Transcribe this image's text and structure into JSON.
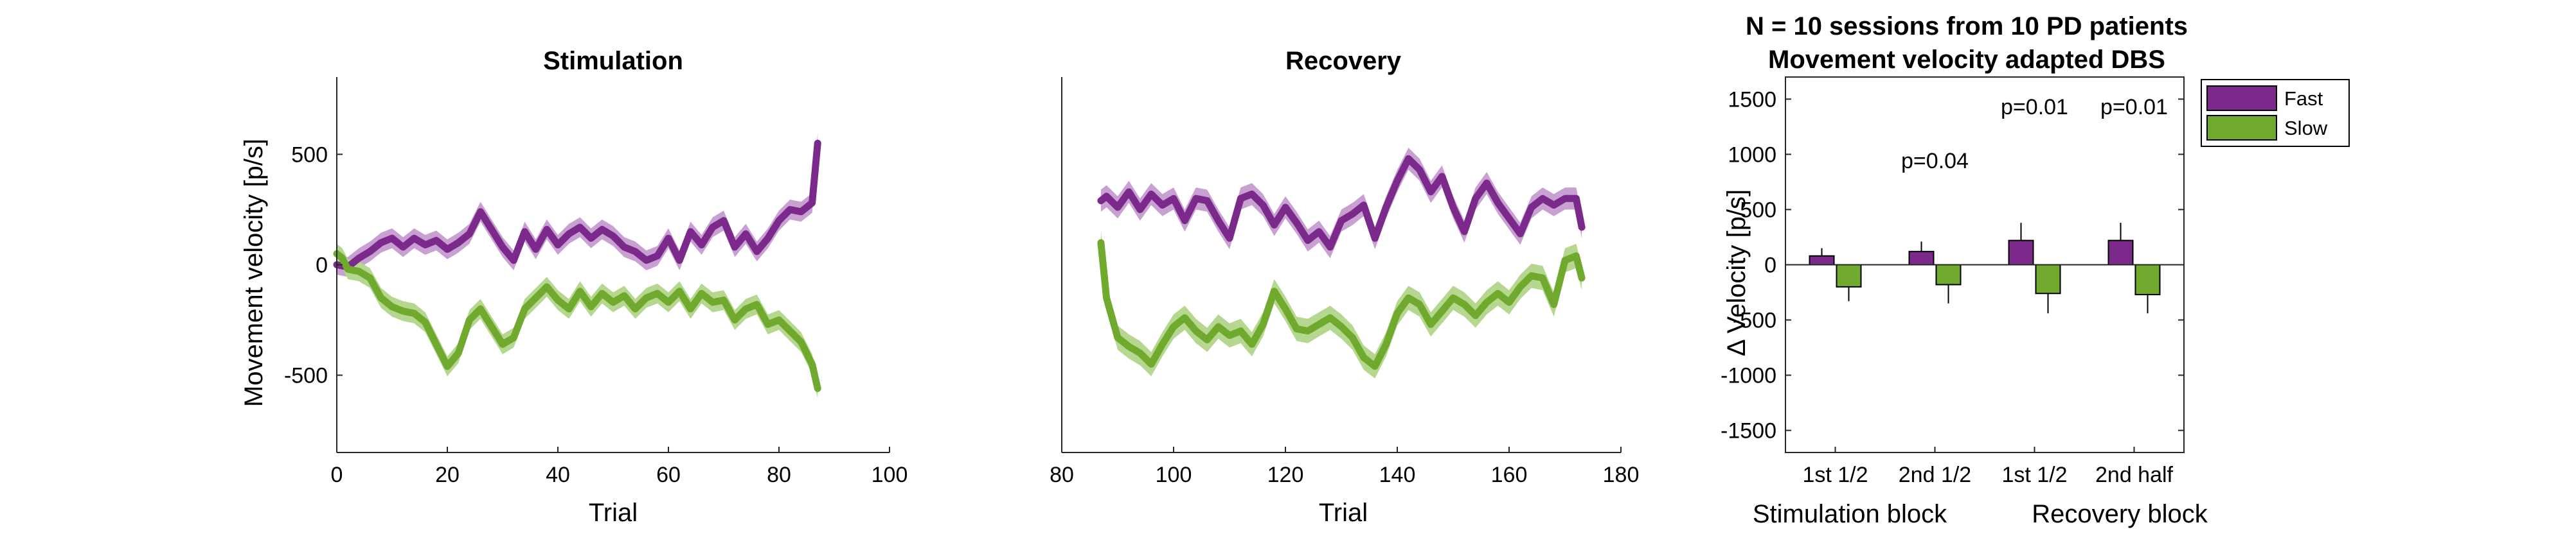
{
  "colors": {
    "fast": "#7B2A8C",
    "slow": "#6FAA2F",
    "fast_band": "#C9A0D2",
    "slow_band": "#B6D78F"
  },
  "chart_data": [
    {
      "type": "line",
      "title": "Stimulation",
      "xlabel": "Trial",
      "ylabel": "Movement velocity [p/s]",
      "xlim": [
        0,
        100
      ],
      "ylim": [
        -850,
        850
      ],
      "xticks": [
        "0",
        "20",
        "40",
        "60",
        "80",
        "100"
      ],
      "yticks": [
        "-500",
        "0",
        "500"
      ],
      "series": [
        {
          "name": "Fast",
          "color": "#7B2A8C",
          "band": 45,
          "x": [
            0,
            2,
            4,
            6,
            8,
            10,
            12,
            14,
            16,
            18,
            20,
            22,
            24,
            26,
            28,
            30,
            32,
            34,
            36,
            38,
            40,
            42,
            44,
            46,
            48,
            50,
            52,
            54,
            56,
            58,
            60,
            62,
            64,
            66,
            68,
            70,
            72,
            74,
            76,
            78,
            80,
            82,
            84,
            86,
            87
          ],
          "y": [
            0,
            -10,
            30,
            60,
            100,
            120,
            80,
            120,
            90,
            110,
            70,
            100,
            140,
            240,
            160,
            80,
            20,
            150,
            70,
            160,
            90,
            140,
            170,
            120,
            160,
            130,
            80,
            60,
            20,
            40,
            120,
            20,
            150,
            90,
            170,
            200,
            80,
            140,
            60,
            120,
            200,
            250,
            240,
            280,
            550
          ]
        },
        {
          "name": "Slow",
          "color": "#6FAA2F",
          "band": 45,
          "x": [
            0,
            1,
            2,
            4,
            6,
            8,
            10,
            12,
            14,
            16,
            18,
            20,
            22,
            24,
            26,
            28,
            30,
            32,
            34,
            36,
            38,
            40,
            42,
            44,
            46,
            48,
            50,
            52,
            54,
            56,
            58,
            60,
            62,
            64,
            66,
            68,
            70,
            72,
            74,
            76,
            78,
            80,
            82,
            84,
            86,
            87
          ],
          "y": [
            50,
            30,
            -20,
            -30,
            -60,
            -150,
            -190,
            -210,
            -220,
            -260,
            -360,
            -460,
            -400,
            -250,
            -200,
            -280,
            -360,
            -330,
            -200,
            -150,
            -100,
            -160,
            -200,
            -120,
            -190,
            -130,
            -170,
            -140,
            -200,
            -150,
            -130,
            -170,
            -120,
            -200,
            -130,
            -170,
            -160,
            -250,
            -200,
            -180,
            -270,
            -250,
            -300,
            -350,
            -450,
            -560
          ]
        }
      ]
    },
    {
      "type": "line",
      "title": "Recovery",
      "xlabel": "Trial",
      "ylabel": "",
      "xlim": [
        80,
        180
      ],
      "ylim": [
        -850,
        850
      ],
      "xticks": [
        "80",
        "100",
        "120",
        "140",
        "160",
        "180"
      ],
      "yticks": [],
      "series": [
        {
          "name": "Fast",
          "color": "#7B2A8C",
          "band": 50,
          "x": [
            87,
            88,
            90,
            92,
            94,
            96,
            98,
            100,
            102,
            104,
            106,
            108,
            110,
            112,
            114,
            116,
            118,
            120,
            122,
            124,
            126,
            128,
            130,
            132,
            134,
            136,
            138,
            140,
            142,
            144,
            146,
            148,
            150,
            152,
            154,
            156,
            158,
            160,
            162,
            164,
            166,
            168,
            170,
            172,
            173
          ],
          "y": [
            290,
            310,
            260,
            330,
            250,
            320,
            270,
            300,
            200,
            300,
            290,
            200,
            120,
            300,
            320,
            270,
            180,
            260,
            190,
            110,
            150,
            80,
            200,
            230,
            270,
            120,
            260,
            380,
            480,
            430,
            330,
            400,
            260,
            150,
            300,
            370,
            280,
            210,
            140,
            260,
            300,
            270,
            300,
            300,
            170
          ]
        },
        {
          "name": "Slow",
          "color": "#6FAA2F",
          "band": 55,
          "x": [
            87,
            88,
            90,
            92,
            94,
            96,
            98,
            100,
            102,
            104,
            106,
            108,
            110,
            112,
            114,
            116,
            118,
            120,
            122,
            124,
            126,
            128,
            130,
            132,
            134,
            136,
            138,
            140,
            142,
            144,
            146,
            148,
            150,
            152,
            154,
            156,
            158,
            160,
            162,
            164,
            166,
            168,
            170,
            172,
            173
          ],
          "y": [
            100,
            -150,
            -330,
            -370,
            -400,
            -450,
            -360,
            -280,
            -240,
            -300,
            -340,
            -280,
            -320,
            -300,
            -360,
            -270,
            -120,
            -200,
            -290,
            -300,
            -270,
            -240,
            -280,
            -330,
            -420,
            -460,
            -360,
            -220,
            -150,
            -180,
            -270,
            -210,
            -150,
            -180,
            -230,
            -170,
            -130,
            -170,
            -100,
            -50,
            -60,
            -180,
            20,
            40,
            -60
          ]
        }
      ]
    },
    {
      "type": "bar",
      "title": "N = 10 sessions from 10 PD patients",
      "subtitle": "Movement velocity adapted DBS",
      "xlabel": "",
      "ylabel": "Δ Velocity [p/s]",
      "ylim": [
        -1700,
        1700
      ],
      "yticks": [
        "-1500",
        "-1000",
        "-500",
        "0",
        "500",
        "1000",
        "1500"
      ],
      "categories": [
        "1st 1/2",
        "2nd 1/2",
        "1st 1/2",
        "2nd half"
      ],
      "group_labels": [
        "Stimulation block",
        "Recovery block"
      ],
      "series": [
        {
          "name": "Fast",
          "color": "#7B2A8C",
          "values": [
            80,
            120,
            220,
            220
          ],
          "errors": [
            70,
            90,
            160,
            160
          ]
        },
        {
          "name": "Slow",
          "color": "#6FAA2F",
          "values": [
            -200,
            -180,
            -260,
            -270
          ],
          "errors": [
            130,
            170,
            180,
            170
          ]
        }
      ],
      "annotations": [
        "",
        "p=0.04",
        "p=0.01",
        "p=0.01"
      ],
      "legend_position": "outside-top-right"
    }
  ]
}
